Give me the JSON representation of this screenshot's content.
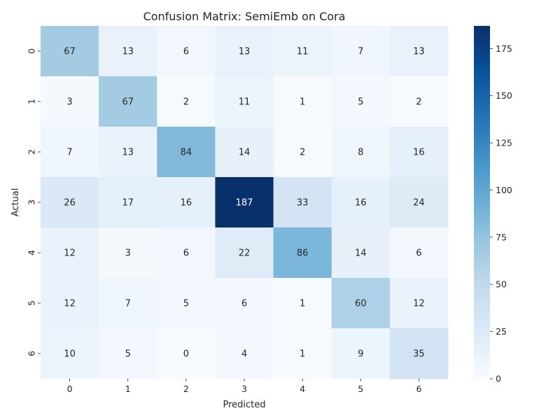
{
  "chart_data": {
    "type": "heatmap",
    "title": "Confusion Matrix: SemiEmb on Cora",
    "xlabel": "Predicted",
    "ylabel": "Actual",
    "x_categories": [
      "0",
      "1",
      "2",
      "3",
      "4",
      "5",
      "6"
    ],
    "y_categories": [
      "0",
      "1",
      "2",
      "3",
      "4",
      "5",
      "6"
    ],
    "matrix": [
      [
        67,
        13,
        6,
        13,
        11,
        7,
        13
      ],
      [
        3,
        67,
        2,
        11,
        1,
        5,
        2
      ],
      [
        7,
        13,
        84,
        14,
        2,
        8,
        16
      ],
      [
        26,
        17,
        16,
        187,
        33,
        16,
        24
      ],
      [
        12,
        3,
        6,
        22,
        86,
        14,
        6
      ],
      [
        12,
        7,
        5,
        6,
        1,
        60,
        12
      ],
      [
        10,
        5,
        0,
        4,
        1,
        9,
        35
      ]
    ],
    "colorbar": {
      "min": 0,
      "max": 187,
      "ticks": [
        0,
        25,
        50,
        75,
        100,
        125,
        150,
        175
      ],
      "colormap": "Blues"
    }
  }
}
